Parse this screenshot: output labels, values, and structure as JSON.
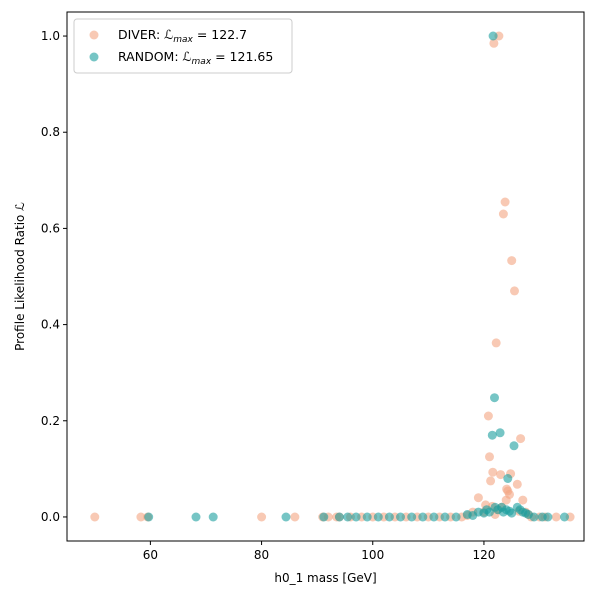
{
  "chart_data": {
    "type": "scatter",
    "xlabel": "h0_1 mass [GeV]",
    "ylabel": "Profile Likelihood Ratio ℒ",
    "xlim": [
      45,
      138
    ],
    "ylim": [
      -0.05,
      1.05
    ],
    "xticks": [
      60,
      80,
      100,
      120
    ],
    "yticks": [
      0.0,
      0.2,
      0.4,
      0.6,
      0.8,
      1.0
    ],
    "grid": false,
    "legend_position": "top-left",
    "series": [
      {
        "name": "DIVER",
        "legend_prefix": "DIVER: ",
        "legend_math": "ℒ",
        "legend_sub": "max",
        "legend_value": " = 122.7",
        "color": "#f4a582",
        "x": [
          50,
          58.3,
          59.5,
          80,
          86,
          91,
          92,
          93.5,
          94,
          96,
          98,
          100,
          102,
          104,
          106,
          108,
          110,
          112,
          114,
          116,
          117,
          118,
          119,
          120,
          120.3,
          120.8,
          121,
          121.2,
          121.5,
          121.6,
          121.8,
          122,
          122.2,
          122.5,
          122.7,
          123,
          123.2,
          123.5,
          123.8,
          124,
          124.1,
          124.3,
          124.6,
          124.8,
          125,
          125.5,
          126,
          126.3,
          126.6,
          127,
          127.5,
          128,
          128.5,
          130,
          131,
          133,
          135.5
        ],
        "y": [
          0,
          0,
          0,
          0,
          0,
          0,
          0,
          0,
          0,
          0,
          0,
          0,
          0,
          0,
          0,
          0,
          0,
          0,
          0,
          0,
          0.003,
          0.01,
          0.04,
          0.01,
          0.025,
          0.21,
          0.125,
          0.075,
          0.022,
          0.093,
          0.985,
          0.005,
          0.362,
          0.015,
          1.0,
          0.088,
          0.02,
          0.63,
          0.655,
          0.035,
          0.058,
          0.054,
          0.047,
          0.09,
          0.533,
          0.47,
          0.068,
          0.012,
          0.163,
          0.035,
          0.01,
          0.005,
          0,
          0,
          0,
          0,
          0
        ]
      },
      {
        "name": "RANDOM",
        "legend_prefix": "RANDOM: ",
        "legend_math": "ℒ",
        "legend_sub": "max",
        "legend_value": " = 121.65",
        "color": "#1a9e9e",
        "x": [
          59.7,
          68.2,
          71.3,
          84.4,
          91.2,
          94,
          95.5,
          97,
          99,
          101,
          103,
          105,
          107,
          109,
          111,
          113,
          115,
          117,
          118,
          119,
          120,
          120.5,
          121,
          121.5,
          121.65,
          121.9,
          122,
          122.5,
          122.9,
          123.2,
          123.5,
          124,
          124.3,
          124.6,
          125,
          125.4,
          126,
          126.5,
          127,
          127.5,
          128,
          129,
          130.5,
          131.5,
          134.5
        ],
        "y": [
          0,
          0,
          0,
          0,
          0,
          0,
          0,
          0,
          0,
          0,
          0,
          0,
          0,
          0,
          0,
          0,
          0,
          0.005,
          0.003,
          0.01,
          0.008,
          0.015,
          0.01,
          0.17,
          1.0,
          0.248,
          0.02,
          0.015,
          0.175,
          0.02,
          0.01,
          0.015,
          0.08,
          0.012,
          0.008,
          0.148,
          0.02,
          0.015,
          0.01,
          0.008,
          0.005,
          0,
          0,
          0,
          0
        ]
      }
    ]
  }
}
